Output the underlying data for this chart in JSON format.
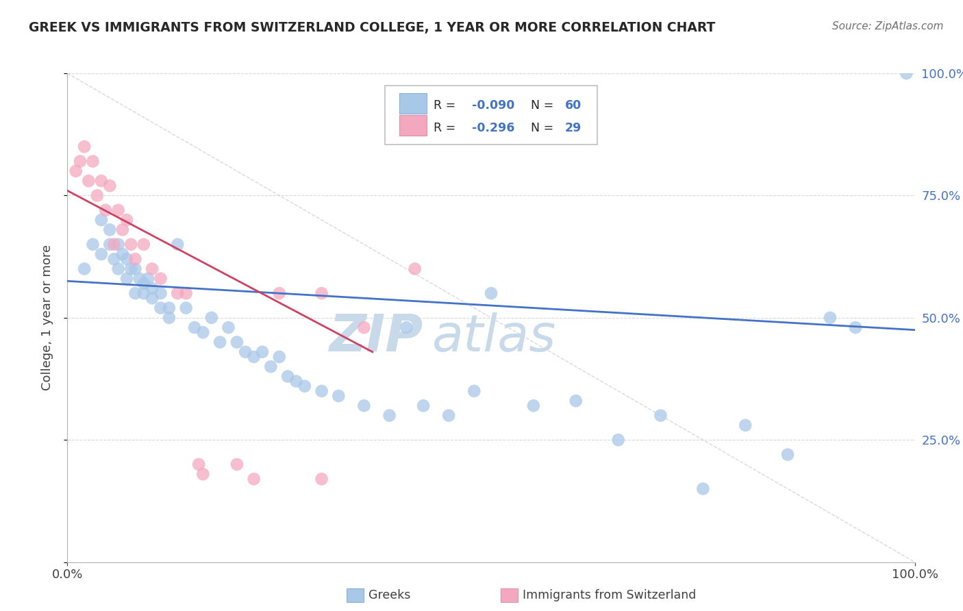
{
  "title": "GREEK VS IMMIGRANTS FROM SWITZERLAND COLLEGE, 1 YEAR OR MORE CORRELATION CHART",
  "source": "Source: ZipAtlas.com",
  "ylabel": "College, 1 year or more",
  "xlim": [
    0.0,
    1.0
  ],
  "ylim": [
    0.0,
    1.0
  ],
  "blue_color": "#a8c8e8",
  "pink_color": "#f4a8c0",
  "blue_line_color": "#4472c4",
  "pink_line_color": "#d04060",
  "diag_line_color": "#c8c8d0",
  "watermark_text": "ZIP",
  "watermark_text2": "atlas",
  "watermark_color": "#c8daea",
  "legend_row1_r": "R = ",
  "legend_row1_val": "-0.090",
  "legend_row1_n": "N = ",
  "legend_row1_nval": "60",
  "legend_row2_r": "R = ",
  "legend_row2_val": "-0.296",
  "legend_row2_n": "N = ",
  "legend_row2_nval": "29",
  "blue_scatter_x": [
    0.02,
    0.03,
    0.04,
    0.04,
    0.05,
    0.05,
    0.055,
    0.06,
    0.06,
    0.065,
    0.07,
    0.07,
    0.075,
    0.08,
    0.08,
    0.085,
    0.09,
    0.09,
    0.095,
    0.1,
    0.1,
    0.11,
    0.11,
    0.12,
    0.12,
    0.13,
    0.14,
    0.15,
    0.16,
    0.17,
    0.18,
    0.19,
    0.2,
    0.21,
    0.22,
    0.23,
    0.24,
    0.25,
    0.26,
    0.27,
    0.28,
    0.3,
    0.32,
    0.35,
    0.38,
    0.4,
    0.42,
    0.45,
    0.48,
    0.5,
    0.55,
    0.6,
    0.65,
    0.7,
    0.75,
    0.8,
    0.85,
    0.9,
    0.93,
    0.99
  ],
  "blue_scatter_y": [
    0.6,
    0.65,
    0.7,
    0.63,
    0.68,
    0.65,
    0.62,
    0.6,
    0.65,
    0.63,
    0.62,
    0.58,
    0.6,
    0.55,
    0.6,
    0.58,
    0.57,
    0.55,
    0.58,
    0.56,
    0.54,
    0.55,
    0.52,
    0.5,
    0.52,
    0.65,
    0.52,
    0.48,
    0.47,
    0.5,
    0.45,
    0.48,
    0.45,
    0.43,
    0.42,
    0.43,
    0.4,
    0.42,
    0.38,
    0.37,
    0.36,
    0.35,
    0.34,
    0.32,
    0.3,
    0.48,
    0.32,
    0.3,
    0.35,
    0.55,
    0.32,
    0.33,
    0.25,
    0.3,
    0.15,
    0.28,
    0.22,
    0.5,
    0.48,
    1.0
  ],
  "pink_scatter_x": [
    0.01,
    0.015,
    0.02,
    0.025,
    0.03,
    0.035,
    0.04,
    0.045,
    0.05,
    0.055,
    0.06,
    0.065,
    0.07,
    0.075,
    0.08,
    0.09,
    0.1,
    0.11,
    0.13,
    0.14,
    0.155,
    0.16,
    0.2,
    0.22,
    0.25,
    0.3,
    0.3,
    0.35,
    0.41
  ],
  "pink_scatter_y": [
    0.8,
    0.82,
    0.85,
    0.78,
    0.82,
    0.75,
    0.78,
    0.72,
    0.77,
    0.65,
    0.72,
    0.68,
    0.7,
    0.65,
    0.62,
    0.65,
    0.6,
    0.58,
    0.55,
    0.55,
    0.2,
    0.18,
    0.2,
    0.17,
    0.55,
    0.55,
    0.17,
    0.48,
    0.6
  ],
  "blue_line_x0": 0.0,
  "blue_line_x1": 1.0,
  "blue_line_y0": 0.575,
  "blue_line_y1": 0.475,
  "pink_line_x0": 0.0,
  "pink_line_x1": 0.36,
  "pink_line_y0": 0.76,
  "pink_line_y1": 0.43
}
